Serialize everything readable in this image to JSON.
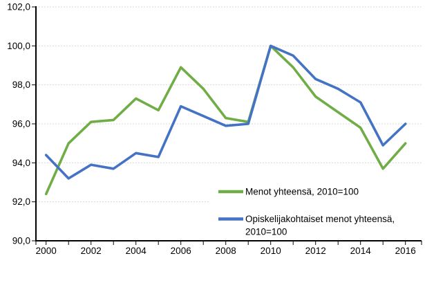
{
  "figure": {
    "title": "",
    "kind": "statistics-line-chart"
  },
  "chart_data": {
    "type": "line",
    "title": "",
    "xlabel": "",
    "ylabel": "",
    "x": [
      2000,
      2001,
      2002,
      2003,
      2004,
      2005,
      2006,
      2007,
      2008,
      2009,
      2010,
      2011,
      2012,
      2013,
      2014,
      2015,
      2016
    ],
    "x_tick_labels": [
      "2000",
      "2002",
      "2004",
      "2006",
      "2008",
      "2010",
      "2012",
      "2014",
      "2016"
    ],
    "x_tick_label_every": 2,
    "series": [
      {
        "name": "Menot yhteensä, 2010=100",
        "color": "#70AD47",
        "values": [
          92.4,
          95.0,
          96.1,
          96.2,
          97.3,
          96.7,
          98.9,
          97.8,
          96.3,
          96.1,
          100.0,
          98.9,
          97.4,
          96.6,
          95.8,
          93.7,
          95.0
        ]
      },
      {
        "name": "Opiskelijakohtaiset menot yhteensä, 2010=100",
        "color": "#4472C4",
        "values": [
          94.4,
          93.2,
          93.9,
          93.7,
          94.5,
          94.3,
          96.9,
          96.4,
          95.9,
          96.0,
          100.0,
          99.5,
          98.3,
          97.8,
          97.1,
          94.9,
          96.0
        ]
      }
    ],
    "ylim": [
      90.0,
      102.0
    ],
    "y_ticks": [
      {
        "value": 90.0,
        "label": "90,0"
      },
      {
        "value": 92.0,
        "label": "92,0"
      },
      {
        "value": 94.0,
        "label": "94,0"
      },
      {
        "value": 96.0,
        "label": "96,0"
      },
      {
        "value": 98.0,
        "label": "98,0"
      },
      {
        "value": 100.0,
        "label": "100,0"
      },
      {
        "value": 102.0,
        "label": "102,0"
      }
    ],
    "grid": "horizontal-dashed",
    "legend_position": "inside-bottom-right",
    "colors": {
      "background": "#FFFFFF",
      "grid": "#D9D9D9",
      "axis": "#000000",
      "text": "#000000"
    }
  }
}
